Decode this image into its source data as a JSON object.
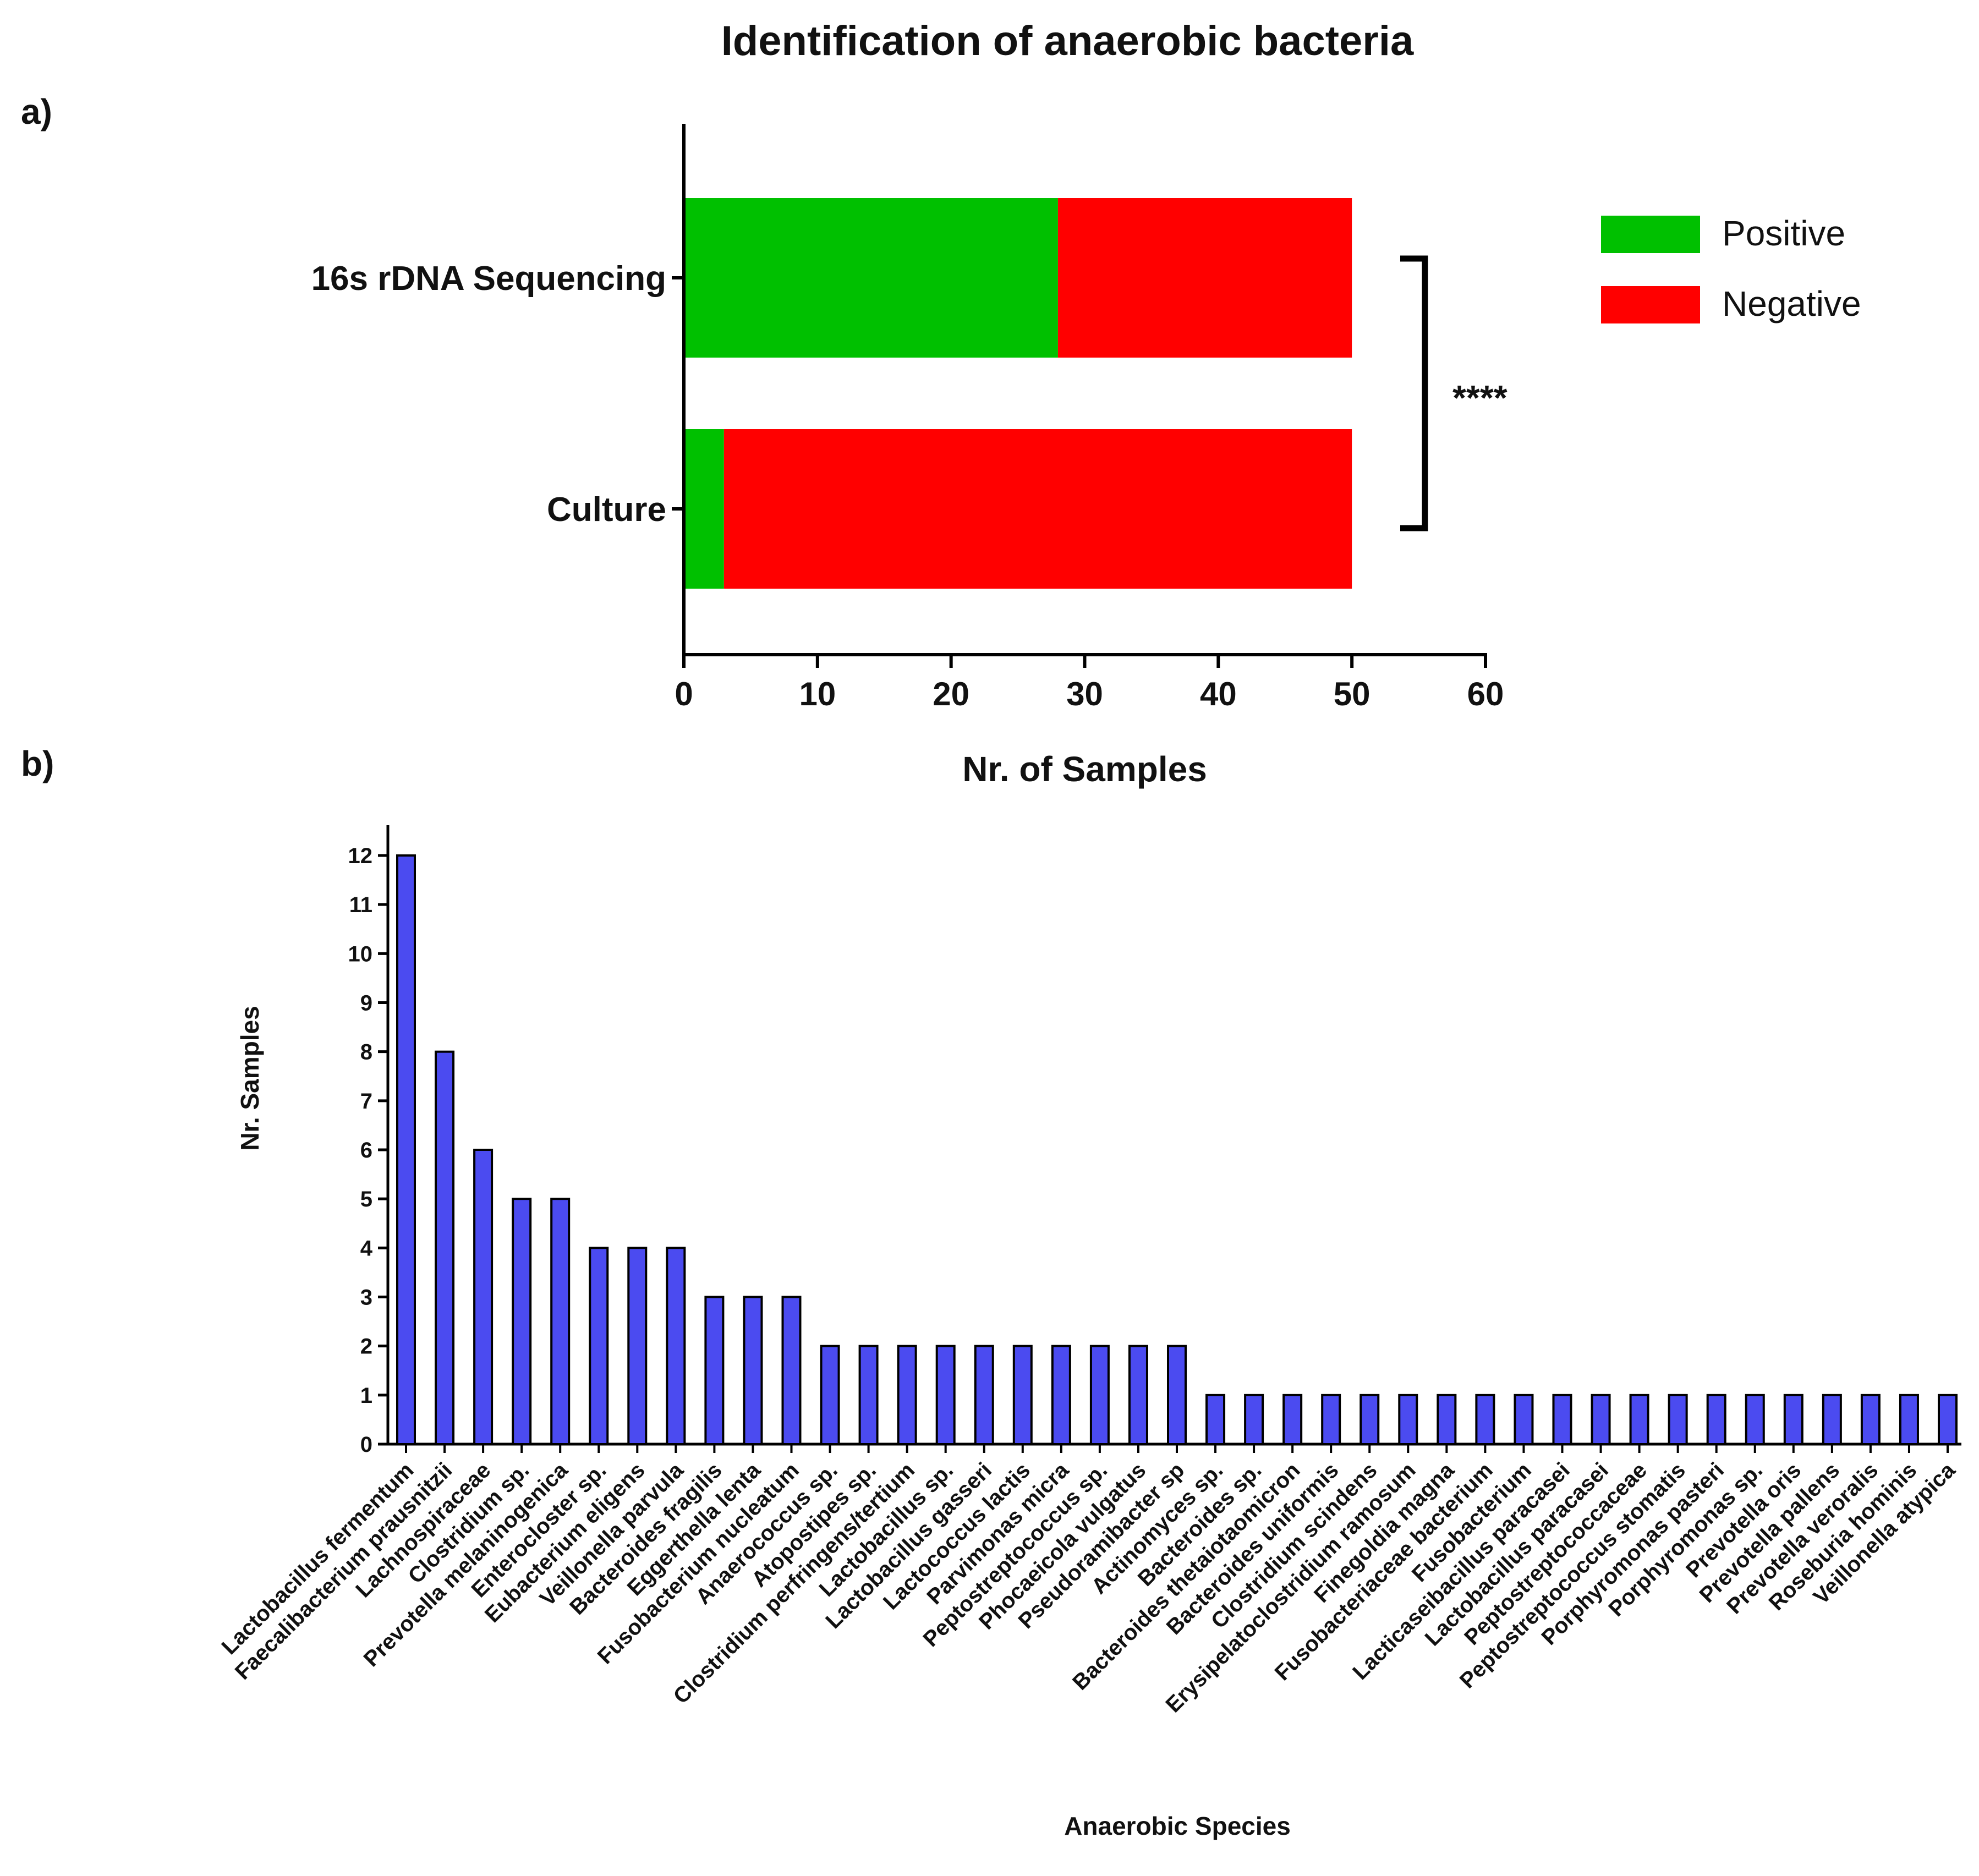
{
  "figure": {
    "title": "Identification of anaerobic bacteria",
    "panel_a_label": "a)",
    "panel_b_label": "b)"
  },
  "colors": {
    "positive": "#00c000",
    "negative": "#ff0000",
    "bar_b": "#4b4bf0",
    "axis": "#000000"
  },
  "chart_data": [
    {
      "type": "bar",
      "orientation": "horizontal",
      "stacked": true,
      "categories": [
        "16s rDNA Sequencing",
        "Culture"
      ],
      "series": [
        {
          "name": "Positive",
          "values": [
            28,
            3
          ]
        },
        {
          "name": "Negative",
          "values": [
            22,
            47
          ]
        }
      ],
      "xlabel": "Nr. of Samples",
      "ylabel": "",
      "xlim": [
        0,
        60
      ],
      "xticks": [
        0,
        10,
        20,
        30,
        40,
        50,
        60
      ],
      "legend": "right",
      "significance": "****",
      "grid": false
    },
    {
      "type": "bar",
      "orientation": "vertical",
      "categories": [
        "Lactobacillus fermentum",
        "Faecalibacterium prausnitzii",
        "Lachnospiraceae",
        "Clostridium sp.",
        "Prevotella melaninogenica",
        "Enterocloster sp.",
        "Eubacterium eligens",
        "Veillonella parvula",
        "Bacteroides fragilis",
        "Eggerthella lenta",
        "Fusobacterium nucleatum",
        "Anaerococcus sp.",
        "Atopostipes sp.",
        "Clostridium perfringens/tertium",
        "Lactobacillus sp.",
        "Lactobacillus gasseri",
        "Lactococcus lactis",
        "Parvimonas micra",
        "Peptostreptococcus sp.",
        "Phocaeicola vulgatus",
        "Pseudoramibacter sp",
        "Actinomyces sp.",
        "Bacteroides sp.",
        "Bacteroides thetaiotaomicron",
        "Bacteroides uniformis",
        "Clostridium scindens",
        "Erysipelatoclostridium ramosum",
        "Finegoldia magna",
        "Fusobacteriaceae bacterium",
        "Fusobacterium",
        "Lacticaseibacillus paracasei",
        "Lactobacillus paracasei",
        "Peptostreptococcaceae",
        "Peptostreptococcus stomatis",
        "Porphyromonas pasteri",
        "Porphyromonas sp.",
        "Prevotella oris",
        "Prevotella pallens",
        "Prevotella veroralis",
        "Roseburia hominis",
        "Veillonella atypica"
      ],
      "values": [
        12,
        8,
        6,
        5,
        5,
        4,
        4,
        4,
        3,
        3,
        3,
        2,
        2,
        2,
        2,
        2,
        2,
        2,
        2,
        2,
        2,
        1,
        1,
        1,
        1,
        1,
        1,
        1,
        1,
        1,
        1,
        1,
        1,
        1,
        1,
        1,
        1,
        1,
        1,
        1,
        1
      ],
      "xlabel": "Anaerobic Species",
      "ylabel": "Nr. Samples",
      "ylim": [
        0,
        12
      ],
      "yticks": [
        0,
        1,
        2,
        3,
        4,
        5,
        6,
        7,
        8,
        9,
        10,
        11,
        12
      ],
      "grid": false
    }
  ]
}
